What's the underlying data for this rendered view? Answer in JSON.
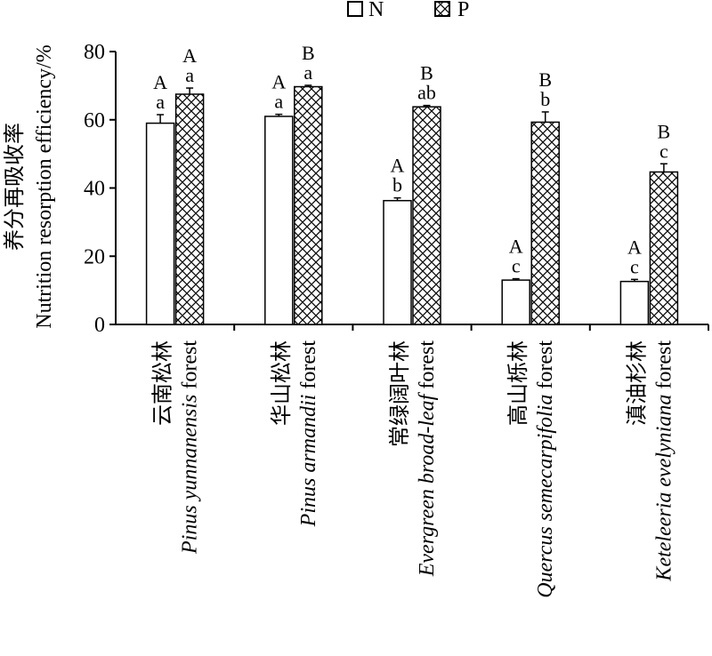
{
  "chart_data": {
    "type": "bar",
    "ylabel_cn": "养分再吸收率",
    "ylabel_en": "Nutrition resorption efficiency/%",
    "ylim": [
      0,
      80
    ],
    "yticks": [
      0,
      20,
      40,
      60,
      80
    ],
    "legend_position": "top-center",
    "categories": [
      {
        "cn": "云南松林",
        "en_italic": "Pinus yunnanensis",
        "en_plain": " forest"
      },
      {
        "cn": "华山松林",
        "en_italic": "Pinus armandii",
        "en_plain": " forest"
      },
      {
        "cn": "常绿阔叶林",
        "en_italic": "Evergreen broad-leaf",
        "en_plain": " forest"
      },
      {
        "cn": "高山栎林",
        "en_italic": "Quercus semecarpifolia",
        "en_plain": " forest"
      },
      {
        "cn": "滇油杉林",
        "en_italic": "Keteleeria evelyniana",
        "en_plain": " forest"
      }
    ],
    "series": [
      {
        "name": "N",
        "pattern": "empty",
        "values": [
          59,
          61,
          36.3,
          13,
          12.6
        ],
        "errors": [
          2.5,
          0.6,
          0.8,
          0.4,
          0.6
        ],
        "letters_upper": [
          "A",
          "A",
          "A",
          "A",
          "A"
        ],
        "letters_lower": [
          "a",
          "a",
          "b",
          "c",
          "c"
        ]
      },
      {
        "name": "P",
        "pattern": "crosshatch",
        "values": [
          67.5,
          69.7,
          63.8,
          59.3,
          44.7
        ],
        "errors": [
          1.8,
          0.4,
          0.4,
          3.0,
          2.4
        ],
        "letters_upper": [
          "A",
          "B",
          "B",
          "B",
          "B"
        ],
        "letters_lower": [
          "a",
          "a",
          "ab",
          "b",
          "c"
        ]
      }
    ]
  }
}
